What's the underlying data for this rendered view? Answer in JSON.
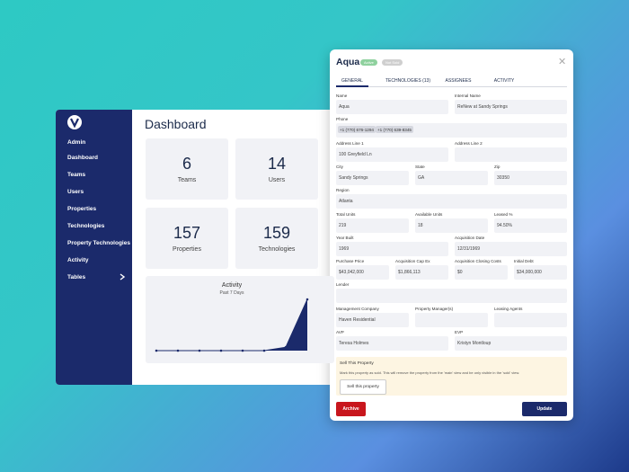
{
  "sidebar": {
    "nav": [
      "Admin",
      "Dashboard",
      "Teams",
      "Users",
      "Properties",
      "Technologies",
      "Property Technologies",
      "Activity",
      "Tables"
    ]
  },
  "dashboard": {
    "title": "Dashboard",
    "stats": [
      {
        "value": 6,
        "label": "Teams"
      },
      {
        "value": 14,
        "label": "Users"
      },
      {
        "value": 157,
        "label": "Properties"
      },
      {
        "value": 159,
        "label": "Technologies"
      }
    ],
    "activity": {
      "type": "line",
      "title": "Activity",
      "subtitle": "Past 7 Days",
      "values": [
        0,
        0,
        0,
        0,
        0,
        0,
        2,
        30
      ],
      "ylim": [
        0,
        30
      ]
    }
  },
  "modal": {
    "title": "Aqua",
    "badges": [
      "Active",
      "Not Sold"
    ],
    "tabs": [
      "GENERAL",
      "TECHNOLOGIES (13)",
      "ASSIGNEES",
      "ACTIVITY"
    ],
    "rows": [
      [
        {
          "label": "Name",
          "value": "Aqua"
        },
        {
          "label": "Internal Name",
          "value": "ReNew at Sandy Springs"
        }
      ],
      [
        {
          "label": "Phone",
          "chips": [
            "+1 (770) 676-1294",
            "+1 (770) 639-8345"
          ]
        }
      ],
      [
        {
          "label": "Address Line 1",
          "value": "100 Greyfield Ln"
        },
        {
          "label": "Address Line 2"
        }
      ],
      [
        {
          "label": "City",
          "value": "Sandy Springs"
        },
        {
          "label": "State",
          "value": "GA"
        },
        {
          "label": "Zip",
          "value": "30350"
        }
      ],
      [
        {
          "label": "Region",
          "value": "Atlanta"
        }
      ],
      [
        {
          "label": "Total Units",
          "value": "219"
        },
        {
          "label": "Available Units",
          "value": "18"
        },
        {
          "label": "Leased %",
          "value": "94.50%"
        }
      ],
      [
        {
          "label": "Year Built",
          "value": "1969"
        },
        {
          "label": "Acquisition Date",
          "value": "12/31/1969"
        }
      ],
      [
        {
          "label": "Purchase Price",
          "value": "$43,042,000"
        },
        {
          "label": "Acquisition Cap Ex",
          "value": "$1,866,113"
        },
        {
          "label": "Acquisition Closing Costs",
          "value": "$0"
        },
        {
          "label": "Initial Debt",
          "value": "$34,000,000"
        }
      ],
      [
        {
          "label": "Lender"
        }
      ],
      [
        {
          "label": "Management Company",
          "value": "Haven Residential"
        },
        {
          "label": "Property Manager(s)"
        },
        {
          "label": "Leasing Agents"
        }
      ],
      [
        {
          "label": "AVP",
          "value": "Teresa Holmes"
        },
        {
          "label": "EVP",
          "value": "Kristyn Montloup"
        }
      ]
    ],
    "sell": {
      "title": "Sell This Property",
      "text": "Mark this property as sold. This will remove the property from the 'main' view and be only visible in the 'sold' view.",
      "button": "Sell this property"
    },
    "buttons": [
      "Archive",
      "Update"
    ]
  }
}
